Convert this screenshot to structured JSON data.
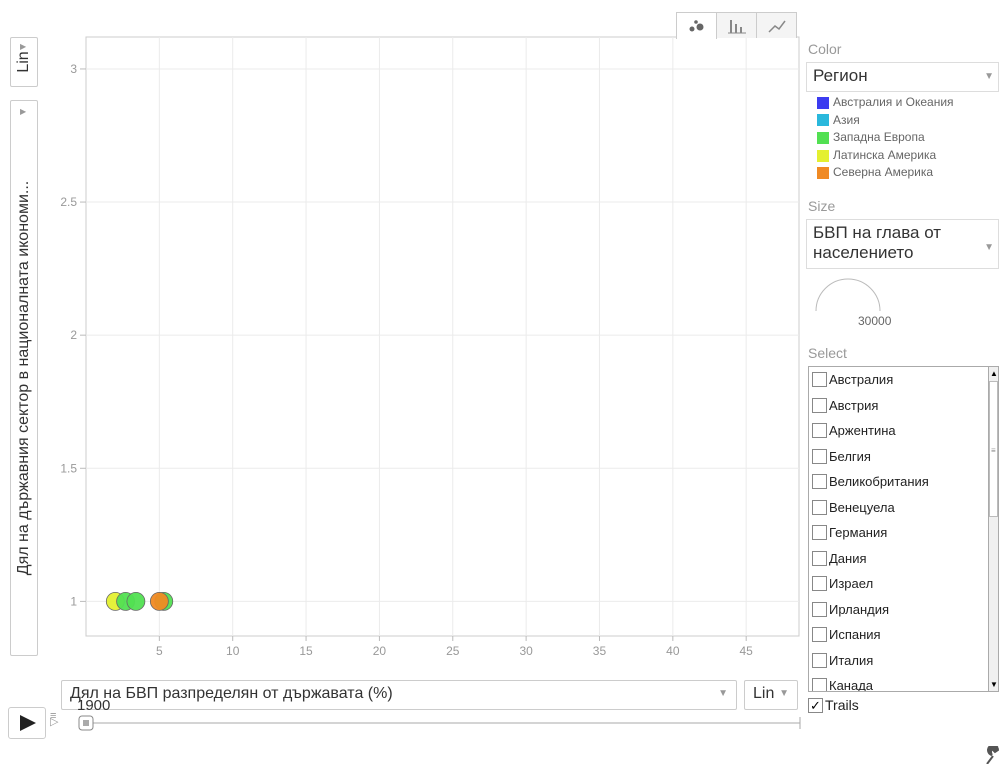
{
  "y_axis": {
    "label": "Дял на държавния сектор в националната икономи...",
    "scale": "Lin"
  },
  "x_axis": {
    "label": "Дял на БВП разпределян от държавата (%)",
    "scale": "Lin"
  },
  "tabs": [
    {
      "name": "bubble-chart-tab",
      "icon": "bubble-icon"
    },
    {
      "name": "bar-chart-tab",
      "icon": "bar-icon"
    },
    {
      "name": "line-chart-tab",
      "icon": "line-icon"
    }
  ],
  "color": {
    "label": "Color",
    "selected": "Регион",
    "legend": [
      {
        "name": "Австралия и Океания",
        "color": "#3c3cf0"
      },
      {
        "name": "Азия",
        "color": "#2ab8dc"
      },
      {
        "name": "Западна Европа",
        "color": "#52e052"
      },
      {
        "name": "Латинска Америка",
        "color": "#e4f030"
      },
      {
        "name": "Северна Америка",
        "color": "#f08a24"
      }
    ]
  },
  "size": {
    "label": "Size",
    "selected": "БВП на глава от населението",
    "scale_value": "30000"
  },
  "select": {
    "label": "Select",
    "countries": [
      "Австралия",
      "Австрия",
      "Аржентина",
      "Белгия",
      "Великобритания",
      "Венецуела",
      "Германия",
      "Дания",
      "Израел",
      "Ирландия",
      "Испания",
      "Италия",
      "Канада"
    ]
  },
  "trails": {
    "label": "Trails",
    "checked": true
  },
  "player": {
    "year": "1900"
  },
  "chart_data": {
    "type": "scatter",
    "xlabel": "Дял на БВП разпределян от държавата (%)",
    "ylabel": "Дял на държавния сектор в националната икономи...",
    "xlim": [
      0,
      48.6
    ],
    "ylim": [
      0.87,
      3.12
    ],
    "x_ticks": [
      5,
      10,
      15,
      20,
      25,
      30,
      35,
      40,
      45
    ],
    "y_ticks": [
      1,
      1.5,
      2,
      2.5,
      3
    ],
    "y_tick_labels": [
      "1",
      "1.5",
      "2",
      "2.5",
      "3"
    ],
    "grid": true,
    "points": [
      {
        "x": 2.0,
        "y": 1,
        "color": "#e4f030"
      },
      {
        "x": 2.7,
        "y": 1,
        "color": "#52e052"
      },
      {
        "x": 3.4,
        "y": 1,
        "color": "#52e052"
      },
      {
        "x": 5.3,
        "y": 1,
        "color": "#52e052"
      },
      {
        "x": 5.0,
        "y": 1,
        "color": "#f08a24"
      }
    ]
  }
}
